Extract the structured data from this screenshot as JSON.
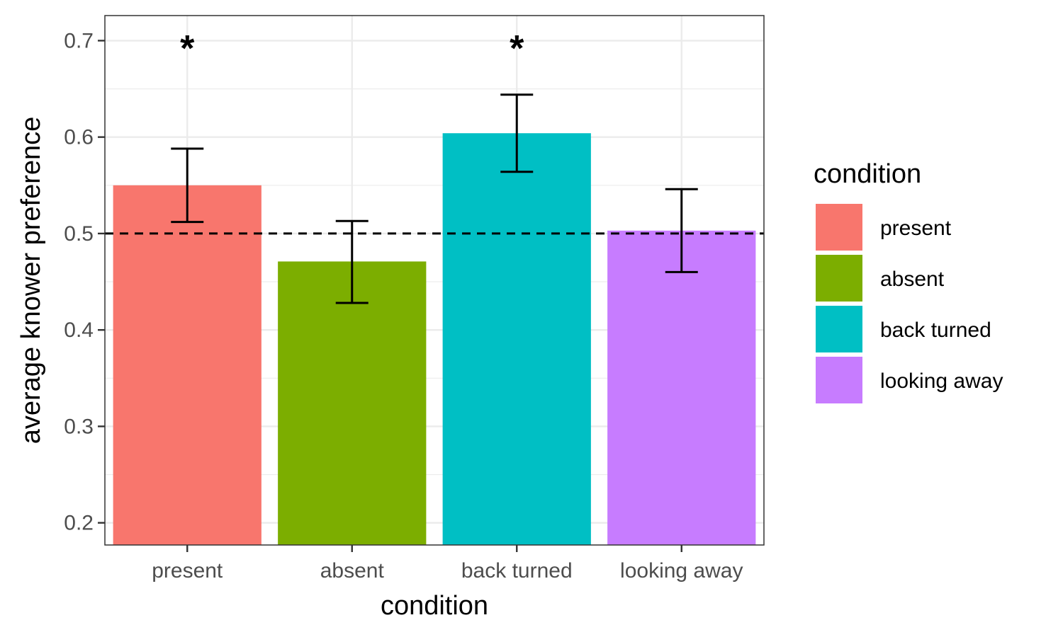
{
  "chart_data": {
    "type": "bar",
    "categories": [
      "present",
      "absent",
      "back turned",
      "looking away"
    ],
    "values": [
      0.55,
      0.471,
      0.604,
      0.503
    ],
    "error_low": [
      0.512,
      0.428,
      0.564,
      0.46
    ],
    "error_high": [
      0.588,
      0.513,
      0.644,
      0.546
    ],
    "significance": [
      "*",
      "",
      "*",
      ""
    ],
    "colors": [
      "#F8766D",
      "#7CAE00",
      "#00BFC4",
      "#C77CFF"
    ],
    "xlabel": "condition",
    "ylabel": "average knower preference",
    "ylim": [
      0.177,
      0.726
    ],
    "yticks": [
      0.2,
      0.3,
      0.4,
      0.5,
      0.6,
      0.7
    ],
    "ytick_labels": [
      "0.2",
      "0.3",
      "0.4",
      "0.5",
      "0.6",
      "0.7"
    ],
    "reference_line": 0.5,
    "reference_line_style": "dashed",
    "legend_title": "condition",
    "legend_position": "right",
    "grid": true
  }
}
